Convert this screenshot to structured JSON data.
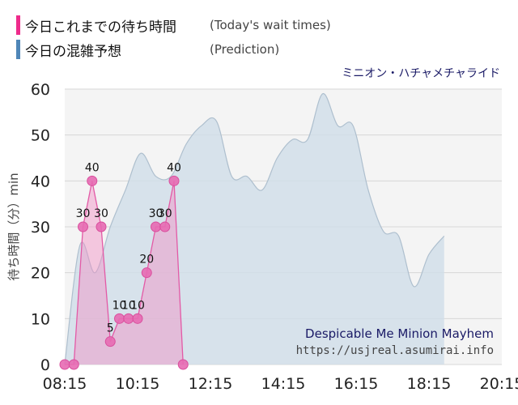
{
  "legend": {
    "items": [
      {
        "label": "今日これまでの待ち時間",
        "note": "(Today's wait times)",
        "color": "#ee2b8b"
      },
      {
        "label": "今日の混雑予想",
        "note": "(Prediction)",
        "color": "#4f86b8"
      }
    ]
  },
  "subtitle": "ミニオン・ハチャメチャライド",
  "watermark": {
    "name": "Despicable Me Minion Mayhem",
    "url": "https://usjreal.asumirai.info"
  },
  "chart_data": {
    "type": "area",
    "ylabel": "待ち時間（分）min",
    "ylim": [
      0,
      60
    ],
    "yticks": [
      "0",
      "10",
      "20",
      "30",
      "40",
      "50",
      "60"
    ],
    "xticks": [
      "08:15",
      "10:15",
      "12:15",
      "14:15",
      "16:15",
      "18:15",
      "20:15"
    ],
    "series": [
      {
        "name": "今日これまでの待ち時間",
        "color": "#ee2b8b",
        "points": [
          {
            "t": "08:15",
            "v": 0
          },
          {
            "t": "08:30",
            "v": 0
          },
          {
            "t": "08:45",
            "v": 30
          },
          {
            "t": "09:00",
            "v": 40
          },
          {
            "t": "09:15",
            "v": 30
          },
          {
            "t": "09:30",
            "v": 5
          },
          {
            "t": "09:45",
            "v": 10
          },
          {
            "t": "10:00",
            "v": 10
          },
          {
            "t": "10:15",
            "v": 10
          },
          {
            "t": "10:30",
            "v": 20
          },
          {
            "t": "10:45",
            "v": 30
          },
          {
            "t": "11:00",
            "v": 30
          },
          {
            "t": "11:15",
            "v": 40
          },
          {
            "t": "11:30",
            "v": 0
          }
        ],
        "labels": [
          {
            "index": 2,
            "text": "30"
          },
          {
            "index": 3,
            "text": "40"
          },
          {
            "index": 4,
            "text": "30"
          },
          {
            "index": 5,
            "text": "5"
          },
          {
            "index": 6,
            "text": "10"
          },
          {
            "index": 7,
            "text": "10"
          },
          {
            "index": 8,
            "text": "10"
          },
          {
            "index": 9,
            "text": "20"
          },
          {
            "index": 10,
            "text": "30"
          },
          {
            "index": 11,
            "text": "30"
          },
          {
            "index": 12,
            "text": "40"
          }
        ]
      },
      {
        "name": "今日の混雑予想",
        "color": "#4f86b8",
        "points": [
          {
            "t": "08:15",
            "v": 0
          },
          {
            "t": "08:40",
            "v": 26
          },
          {
            "t": "09:05",
            "v": 20
          },
          {
            "t": "09:30",
            "v": 30
          },
          {
            "t": "09:55",
            "v": 38
          },
          {
            "t": "10:20",
            "v": 46
          },
          {
            "t": "10:45",
            "v": 41
          },
          {
            "t": "11:10",
            "v": 41
          },
          {
            "t": "11:35",
            "v": 48
          },
          {
            "t": "12:00",
            "v": 52
          },
          {
            "t": "12:25",
            "v": 53
          },
          {
            "t": "12:50",
            "v": 41
          },
          {
            "t": "13:15",
            "v": 41
          },
          {
            "t": "13:40",
            "v": 38
          },
          {
            "t": "14:05",
            "v": 45
          },
          {
            "t": "14:30",
            "v": 49
          },
          {
            "t": "14:55",
            "v": 49
          },
          {
            "t": "15:20",
            "v": 59
          },
          {
            "t": "15:45",
            "v": 52
          },
          {
            "t": "16:10",
            "v": 52
          },
          {
            "t": "16:35",
            "v": 38
          },
          {
            "t": "17:00",
            "v": 29
          },
          {
            "t": "17:25",
            "v": 28
          },
          {
            "t": "17:50",
            "v": 17
          },
          {
            "t": "18:15",
            "v": 24
          },
          {
            "t": "18:40",
            "v": 28
          }
        ]
      }
    ]
  }
}
